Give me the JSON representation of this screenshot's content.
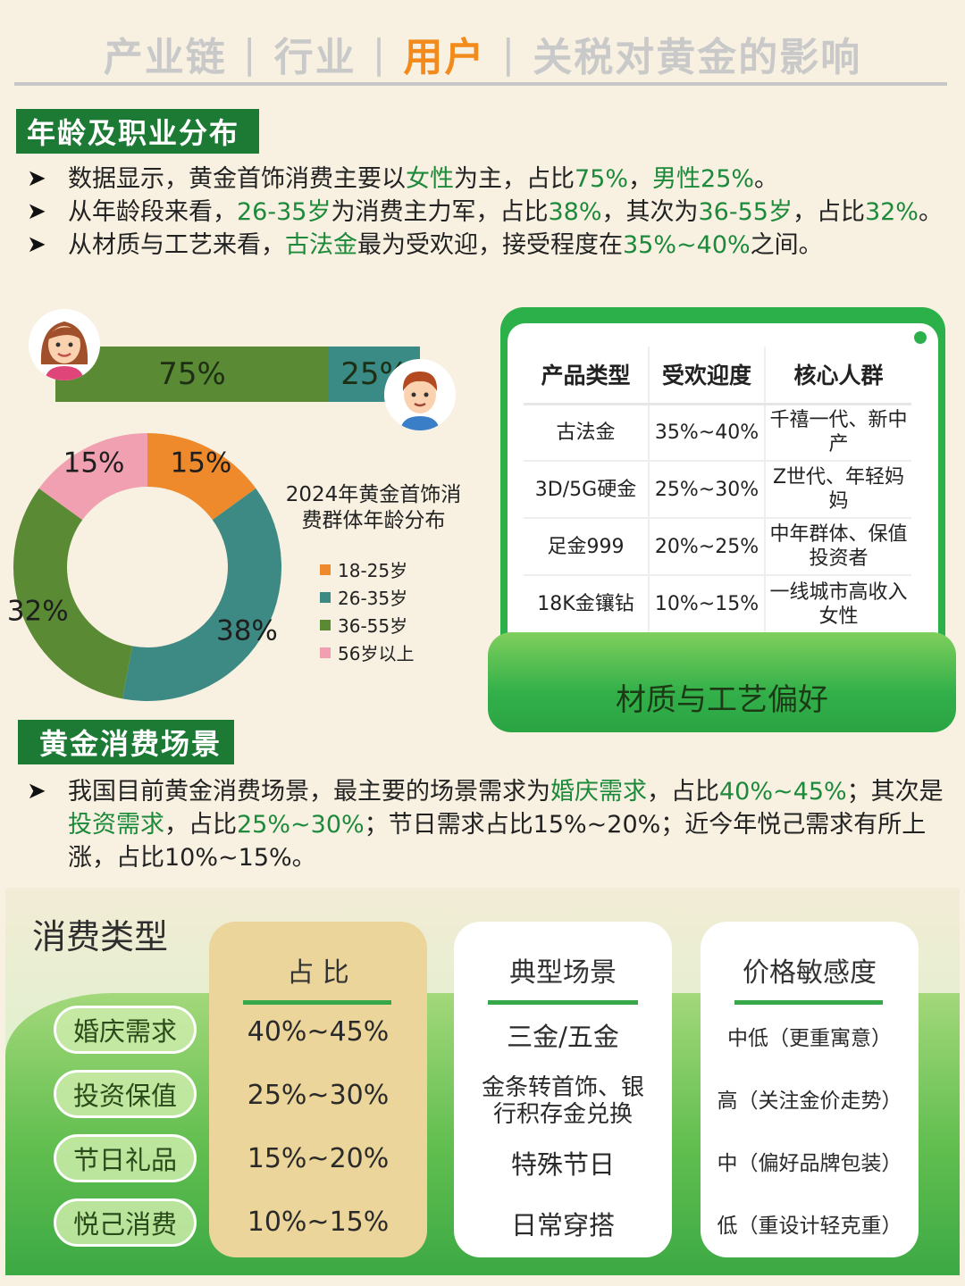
{
  "nav": {
    "items": [
      "产业链",
      "行业",
      "用户",
      "关税对黄金的影响"
    ],
    "active": "用户",
    "separator": "|"
  },
  "section1": {
    "title": "年龄及职业分布",
    "bullets": [
      [
        {
          "t": "数据显示，黄金首饰消费主要以",
          "h": false
        },
        {
          "t": "女性",
          "h": true
        },
        {
          "t": "为主，占比",
          "h": false
        },
        {
          "t": "75%",
          "h": true
        },
        {
          "t": "，",
          "h": false
        },
        {
          "t": "男性",
          "h": true
        },
        {
          "t": "25%",
          "h": true
        },
        {
          "t": "。",
          "h": false
        }
      ],
      [
        {
          "t": "从年龄段来看，",
          "h": false
        },
        {
          "t": "26-35岁",
          "h": true
        },
        {
          "t": "为消费主力军，占比",
          "h": false
        },
        {
          "t": "38%",
          "h": true
        },
        {
          "t": "，其次为",
          "h": false
        },
        {
          "t": "36-55岁",
          "h": true
        },
        {
          "t": "，占比",
          "h": false
        },
        {
          "t": "32%",
          "h": true
        },
        {
          "t": "。",
          "h": false
        }
      ],
      [
        {
          "t": "从材质与工艺来看，",
          "h": false
        },
        {
          "t": "古法金",
          "h": true
        },
        {
          "t": "最为受欢迎，接受程度在",
          "h": false
        },
        {
          "t": "35%~40%",
          "h": true
        },
        {
          "t": "之间。",
          "h": false
        }
      ]
    ]
  },
  "gender": {
    "female_pct": 75,
    "male_pct": 25,
    "female_label": "75%",
    "male_label": "25%",
    "female_color": "#5b8a35",
    "male_color": "#3a8a86"
  },
  "chart_data": {
    "type": "pie",
    "title": "2024年黄金首饰消费群体年龄分布",
    "categories": [
      "18-25岁",
      "26-35岁",
      "36-55岁",
      "56岁以上"
    ],
    "values": [
      15,
      38,
      32,
      15
    ],
    "labels": [
      "15%",
      "38%",
      "32%",
      "15%"
    ],
    "colors": [
      "#ee8a2c",
      "#3d8a84",
      "#5b8a35",
      "#f0a0b0"
    ],
    "legend": "right"
  },
  "product_table": {
    "headers": [
      "产品类型",
      "受欢迎度",
      "核心人群"
    ],
    "rows": [
      [
        "古法金",
        "35%~40%",
        "千禧一代、新中产"
      ],
      [
        "3D/5G硬金",
        "25%~30%",
        "Z世代、年轻妈妈"
      ],
      [
        "足金999",
        "20%~25%",
        "中年群体、保值投资者"
      ],
      [
        "18K金镶钻",
        "10%~15%",
        "一线城市高收入女性"
      ]
    ],
    "caption": "材质与工艺偏好"
  },
  "section2": {
    "title": "黄金消费场景",
    "bullet": [
      {
        "t": "我国目前黄金消费场景，最主要的场景需求为",
        "h": false
      },
      {
        "t": "婚庆需求",
        "h": true
      },
      {
        "t": "，占比",
        "h": false
      },
      {
        "t": "40%~45%",
        "h": true
      },
      {
        "t": "；其次是",
        "h": false
      },
      {
        "t": "投资需求",
        "h": true
      },
      {
        "t": "，占比",
        "h": false
      },
      {
        "t": "25%~30%",
        "h": true
      },
      {
        "t": "；节日需求占比15%~20%；近今年悦己需求有所上涨，占比10%~15%。",
        "h": false
      }
    ]
  },
  "consumption": {
    "title": "消费类型",
    "types": [
      "婚庆需求",
      "投资保值",
      "节日礼品",
      "悦己消费"
    ],
    "columns": {
      "share": {
        "header": "占 比",
        "values": [
          "40%~45%",
          "25%~30%",
          "15%~20%",
          "10%~15%"
        ]
      },
      "scene": {
        "header": "典型场景",
        "values": [
          "三金/五金",
          "金条转首饰、银行积存金兑换",
          "特殊节日",
          "日常穿搭"
        ]
      },
      "price": {
        "header": "价格敏感度",
        "values": [
          "中低（更重寓意）",
          "高（关注金价走势）",
          "中（偏好品牌包装）",
          "低（重设计轻克重）"
        ]
      }
    }
  }
}
